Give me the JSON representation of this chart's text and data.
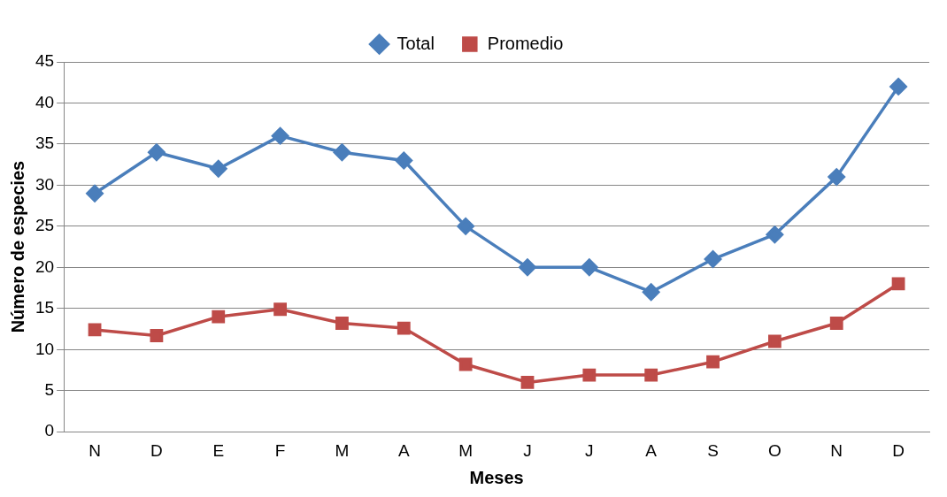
{
  "chart_data": {
    "type": "line",
    "xlabel": "Meses",
    "ylabel": "Número de especies",
    "categories": [
      "N",
      "D",
      "E",
      "F",
      "M",
      "A",
      "M",
      "J",
      "J",
      "A",
      "S",
      "O",
      "N",
      "D"
    ],
    "series": [
      {
        "name": "Total",
        "color": "#4a7ebb",
        "marker": "diamond",
        "values": [
          29,
          34,
          32,
          36,
          34,
          33,
          25,
          20,
          20,
          17,
          21,
          24,
          31,
          42
        ]
      },
      {
        "name": "Promedio",
        "color": "#be4b48",
        "marker": "square",
        "values": [
          12.4,
          11.7,
          14.0,
          14.9,
          13.2,
          12.6,
          8.2,
          6.0,
          6.9,
          6.9,
          8.5,
          11.0,
          13.2,
          18.0
        ]
      }
    ],
    "ylim": [
      0,
      45
    ],
    "yticks": [
      0,
      5,
      10,
      15,
      20,
      25,
      30,
      35,
      40,
      45
    ],
    "grid": "y",
    "legend": "top",
    "line_style": "solid"
  }
}
